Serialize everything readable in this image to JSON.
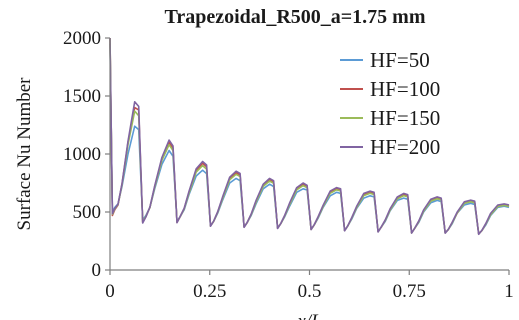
{
  "chart_data": {
    "type": "line",
    "title": "Trapezoidal_R500_a=1.75 mm",
    "xlabel": "x/L",
    "ylabel": "Surface Nu Number",
    "xlim": [
      0,
      1
    ],
    "ylim": [
      0,
      2000
    ],
    "xticks": [
      0,
      0.25,
      0.5,
      0.75,
      1
    ],
    "xtick_labels": [
      "0",
      "0.25",
      "0.5",
      "0.75",
      "1"
    ],
    "yticks": [
      0,
      500,
      1000,
      1500,
      2000
    ],
    "ytick_labels": [
      "0",
      "500",
      "1000",
      "1500",
      "2000"
    ],
    "grid": false,
    "legend_position": "top-right",
    "x": [
      0.0,
      0.006,
      0.012,
      0.02,
      0.03,
      0.045,
      0.062,
      0.072,
      0.082,
      0.09,
      0.1,
      0.112,
      0.13,
      0.148,
      0.158,
      0.168,
      0.176,
      0.186,
      0.198,
      0.216,
      0.232,
      0.242,
      0.252,
      0.26,
      0.27,
      0.282,
      0.3,
      0.316,
      0.326,
      0.336,
      0.344,
      0.354,
      0.366,
      0.384,
      0.4,
      0.41,
      0.42,
      0.428,
      0.438,
      0.45,
      0.468,
      0.484,
      0.494,
      0.504,
      0.512,
      0.522,
      0.534,
      0.552,
      0.568,
      0.578,
      0.588,
      0.596,
      0.606,
      0.618,
      0.636,
      0.652,
      0.662,
      0.672,
      0.68,
      0.69,
      0.702,
      0.72,
      0.736,
      0.746,
      0.756,
      0.764,
      0.774,
      0.786,
      0.804,
      0.82,
      0.83,
      0.84,
      0.848,
      0.858,
      0.87,
      0.888,
      0.904,
      0.914,
      0.924,
      0.932,
      0.942,
      0.954,
      0.972,
      0.988,
      1.0
    ],
    "series": [
      {
        "name": "HF=50",
        "color": "#5b9bd5",
        "values": [
          1950,
          500,
          540,
          570,
          720,
          1000,
          1240,
          1210,
          430,
          470,
          540,
          700,
          910,
          1030,
          980,
          420,
          460,
          520,
          650,
          810,
          860,
          830,
          380,
          420,
          490,
          600,
          750,
          790,
          770,
          370,
          410,
          470,
          570,
          700,
          740,
          720,
          360,
          400,
          460,
          550,
          670,
          700,
          690,
          350,
          390,
          450,
          540,
          640,
          670,
          660,
          340,
          380,
          440,
          530,
          620,
          640,
          630,
          330,
          370,
          420,
          510,
          600,
          620,
          610,
          320,
          360,
          410,
          500,
          580,
          600,
          590,
          320,
          350,
          400,
          490,
          560,
          575,
          565,
          310,
          340,
          390,
          470,
          540,
          550,
          540
        ]
      },
      {
        "name": "HF=100",
        "color": "#c0504d",
        "values": [
          2000,
          470,
          520,
          560,
          740,
          1100,
          1400,
          1380,
          410,
          460,
          540,
          720,
          960,
          1100,
          1050,
          410,
          460,
          530,
          670,
          860,
          920,
          890,
          380,
          420,
          500,
          620,
          790,
          840,
          820,
          370,
          410,
          480,
          590,
          730,
          780,
          760,
          360,
          400,
          470,
          570,
          700,
          740,
          720,
          350,
          390,
          460,
          550,
          670,
          700,
          690,
          340,
          380,
          450,
          540,
          650,
          670,
          660,
          330,
          370,
          430,
          520,
          620,
          650,
          640,
          320,
          360,
          420,
          510,
          600,
          620,
          610,
          320,
          350,
          410,
          490,
          580,
          595,
          585,
          310,
          340,
          400,
          480,
          550,
          560,
          550
        ]
      },
      {
        "name": "HF=150",
        "color": "#9bbb59",
        "values": [
          1990,
          480,
          525,
          565,
          735,
          1080,
          1370,
          1330,
          415,
          462,
          540,
          712,
          945,
          1080,
          1030,
          412,
          460,
          527,
          662,
          845,
          900,
          870,
          380,
          420,
          497,
          614,
          778,
          825,
          805,
          370,
          410,
          477,
          584,
          721,
          767,
          747,
          360,
          400,
          467,
          564,
          691,
          728,
          710,
          350,
          390,
          457,
          547,
          661,
          691,
          681,
          340,
          380,
          447,
          537,
          641,
          661,
          651,
          330,
          370,
          427,
          517,
          614,
          641,
          631,
          320,
          360,
          417,
          507,
          594,
          614,
          604,
          320,
          350,
          407,
          491,
          574,
          589,
          579,
          310,
          340,
          397,
          477,
          547,
          557,
          547
        ]
      },
      {
        "name": "HF=200",
        "color": "#8064a2",
        "values": [
          2000,
          485,
          530,
          568,
          745,
          1110,
          1450,
          1410,
          405,
          458,
          542,
          725,
          970,
          1120,
          1070,
          408,
          462,
          533,
          678,
          872,
          935,
          905,
          378,
          422,
          503,
          628,
          800,
          852,
          832,
          368,
          412,
          483,
          598,
          740,
          790,
          770,
          358,
          402,
          473,
          578,
          710,
          750,
          730,
          348,
          392,
          463,
          558,
          680,
          710,
          700,
          338,
          382,
          453,
          548,
          660,
          680,
          670,
          328,
          372,
          433,
          528,
          630,
          660,
          650,
          318,
          362,
          423,
          518,
          610,
          630,
          620,
          318,
          352,
          413,
          498,
          588,
          603,
          593,
          308,
          342,
          403,
          488,
          560,
          570,
          560
        ]
      }
    ]
  }
}
